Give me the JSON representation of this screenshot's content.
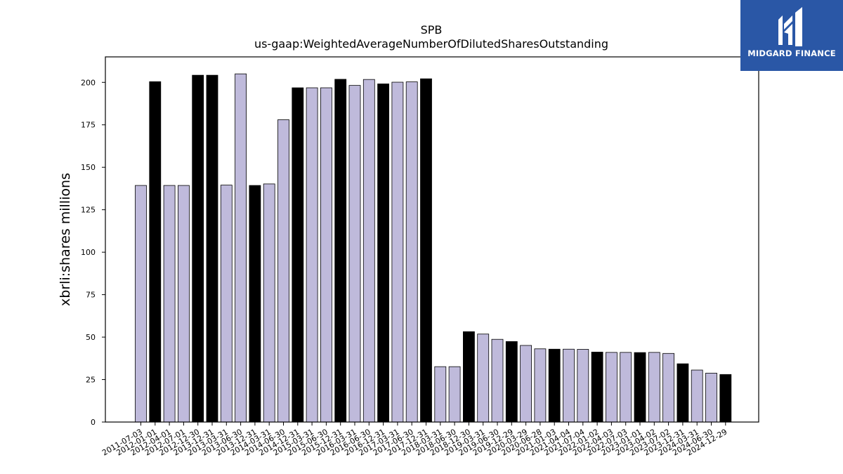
{
  "brand": {
    "name": "MIDGARD FINANCE",
    "bg_color": "#2a57a6"
  },
  "chart_data": {
    "type": "bar",
    "title": "SPB",
    "subtitle": "us-gaap:WeightedAverageNumberOfDilutedSharesOutstanding",
    "xlabel": "",
    "ylabel": "xbrli:shares millions",
    "ylim": [
      0,
      215
    ],
    "yticks": [
      0,
      25,
      50,
      75,
      100,
      125,
      150,
      175,
      200
    ],
    "grid": false,
    "colors": {
      "light": "#bfbadb",
      "dark": "#000000"
    },
    "categories": [
      "2011-07-03",
      "2012-01-01",
      "2012-04-01",
      "2012-07-01",
      "2012-12-30",
      "2013-12-31",
      "2013-03-31",
      "2013-06-30",
      "2013-12-31",
      "2014-03-31",
      "2014-06-30",
      "2014-12-31",
      "2015-03-31",
      "2015-06-30",
      "2015-12-31",
      "2016-03-31",
      "2016-06-30",
      "2016-12-31",
      "2017-03-31",
      "2017-06-30",
      "2017-12-31",
      "2018-03-31",
      "2018-06-30",
      "2018-12-30",
      "2019-03-31",
      "2019-06-30",
      "2019-12-29",
      "2020-03-29",
      "2020-06-28",
      "2021-01-03",
      "2021-04-04",
      "2021-07-04",
      "2022-01-02",
      "2022-04-03",
      "2022-07-03",
      "2023-01-01",
      "2023-04-02",
      "2023-07-02",
      "2023-12-31",
      "2024-03-31",
      "2024-06-30",
      "2024-12-29"
    ],
    "values": [
      139.3,
      200.4,
      139.3,
      139.3,
      204.2,
      204.2,
      139.5,
      205.0,
      139.3,
      140.2,
      178.0,
      196.8,
      196.8,
      196.8,
      201.8,
      198.2,
      201.7,
      199.1,
      200.1,
      200.3,
      202.1,
      32.6,
      32.6,
      53.2,
      51.8,
      48.7,
      47.4,
      45.1,
      43.1,
      42.9,
      42.9,
      42.8,
      41.2,
      41.0,
      41.0,
      40.9,
      41.0,
      40.4,
      34.3,
      30.6,
      28.8,
      28.0
    ],
    "bar_colors": [
      "light",
      "dark",
      "light",
      "light",
      "dark",
      "dark",
      "light",
      "light",
      "dark",
      "light",
      "light",
      "dark",
      "light",
      "light",
      "dark",
      "light",
      "light",
      "dark",
      "light",
      "light",
      "dark",
      "light",
      "light",
      "dark",
      "light",
      "light",
      "dark",
      "light",
      "light",
      "dark",
      "light",
      "light",
      "dark",
      "light",
      "light",
      "dark",
      "light",
      "light",
      "dark",
      "light",
      "light",
      "dark"
    ]
  }
}
